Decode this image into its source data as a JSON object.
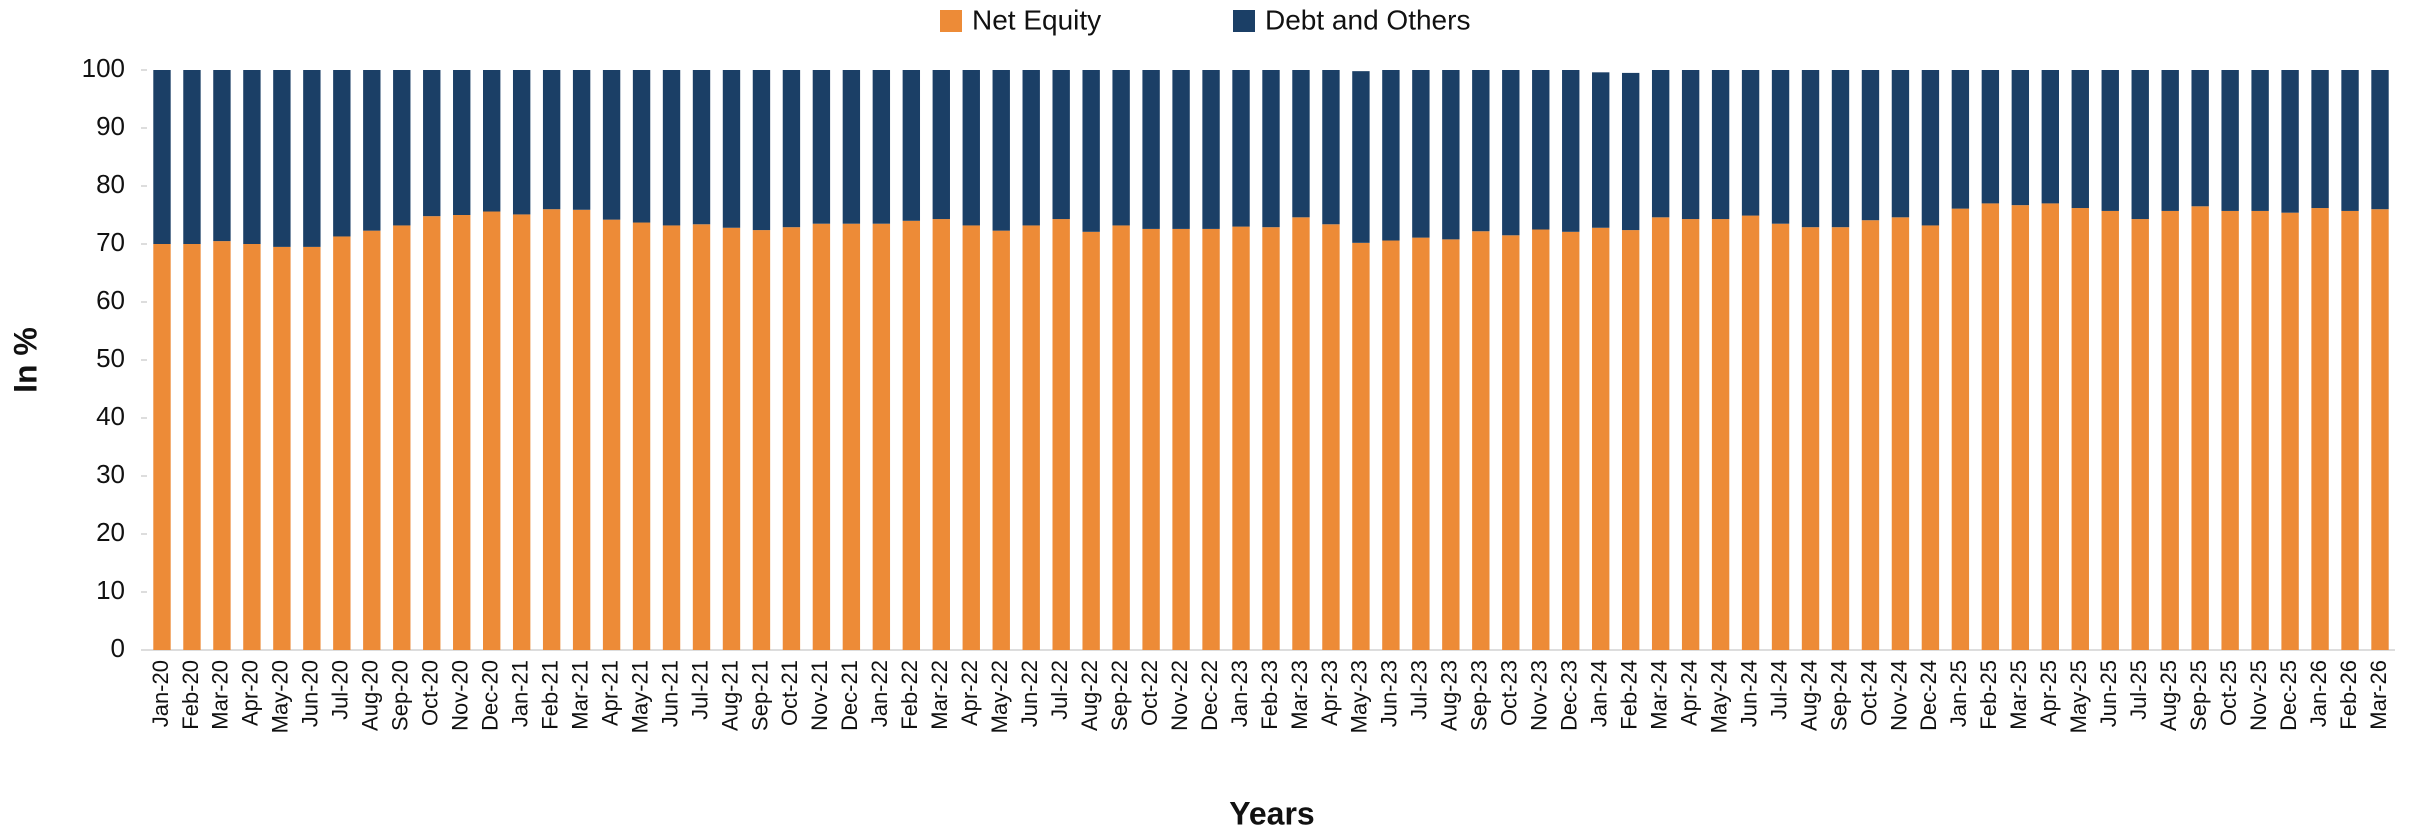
{
  "chart_data": {
    "type": "stacked_bar",
    "x_label": "Years",
    "y_label": "In %",
    "categories": [
      "Jan-20",
      "Feb-20",
      "Mar-20",
      "Apr-20",
      "May-20",
      "Jun-20",
      "Jul-20",
      "Aug-20",
      "Sep-20",
      "Oct-20",
      "Nov-20",
      "Dec-20",
      "Jan-21",
      "Feb-21",
      "Mar-21",
      "Apr-21",
      "May-21",
      "Jun-21",
      "Jul-21",
      "Aug-21",
      "Sep-21",
      "Oct-21",
      "Nov-21",
      "Dec-21",
      "Jan-22",
      "Feb-22",
      "Mar-22",
      "Apr-22",
      "May-22",
      "Jun-22",
      "Jul-22",
      "Aug-22",
      "Sep-22",
      "Oct-22",
      "Nov-22",
      "Dec-22",
      "Jan-23",
      "Feb-23",
      "Mar-23",
      "Apr-23",
      "May-23",
      "Jun-23",
      "Jul-23",
      "Aug-23",
      "Sep-23",
      "Oct-23",
      "Nov-23",
      "Dec-23",
      "Jan-24",
      "Feb-24",
      "Mar-24",
      "Apr-24",
      "May-24",
      "Jun-24",
      "Jul-24",
      "Aug-24",
      "Sep-24",
      "Oct-24",
      "Nov-24",
      "Dec-24",
      "Jan-25",
      "Feb-25",
      "Mar-25",
      "Apr-25",
      "May-25",
      "Jun-25",
      "Jul-25",
      "Aug-25",
      "Sep-25",
      "Oct-25",
      "Nov-25",
      "Dec-25",
      "Jan-26",
      "Feb-26",
      "Mar-26"
    ],
    "series": [
      {
        "name": "Net Equity",
        "color": "#ed8b37",
        "values": [
          70,
          70,
          70.5,
          70,
          69.5,
          69.5,
          71.3,
          72.3,
          73.2,
          74.8,
          75,
          75.6,
          75.1,
          76,
          75.9,
          74.2,
          73.7,
          73.2,
          73.4,
          72.8,
          72.4,
          72.9,
          73.5,
          73.5,
          73.5,
          74,
          74.3,
          73.2,
          72.3,
          73.2,
          74.3,
          72.1,
          73.2,
          72.6,
          72.6,
          72.6,
          73,
          72.9,
          74.6,
          73.4,
          70.2,
          70.6,
          71.1,
          70.8,
          72.2,
          71.5,
          72.5,
          72.1,
          72.8,
          72.4,
          74.6,
          74.3,
          74.3,
          74.9,
          73.5,
          72.9,
          72.9,
          74.1,
          74.6,
          73.2,
          76.1,
          77,
          76.7,
          77,
          76.2,
          75.7,
          74.3,
          75.7,
          76.5,
          75.7,
          75.7,
          75.4,
          76.2,
          75.7,
          76
        ]
      },
      {
        "name": "Debt and Others",
        "color": "#1b3f66",
        "values": [
          30,
          30,
          29.5,
          30,
          30.5,
          30.5,
          28.7,
          27.7,
          26.8,
          25.2,
          25,
          24.4,
          24.9,
          24,
          24.1,
          25.8,
          26.3,
          26.8,
          26.6,
          27.2,
          27.6,
          27.1,
          26.5,
          26.5,
          26.5,
          26,
          25.7,
          26.8,
          27.7,
          26.8,
          25.7,
          27.9,
          26.8,
          27.4,
          27.4,
          27.4,
          27,
          27.1,
          25.4,
          26.6,
          29.6,
          29.4,
          28.9,
          29.2,
          27.8,
          28.5,
          27.5,
          27.9,
          26.8,
          27.1,
          25.4,
          25.7,
          25.7,
          25.1,
          26.5,
          27.1,
          27.1,
          25.9,
          25.4,
          26.8,
          23.9,
          23,
          23.3,
          23,
          23.8,
          24.3,
          25.7,
          24.3,
          23.5,
          24.3,
          24.3,
          24.6,
          23.8,
          24.3,
          24
        ]
      }
    ],
    "ylim": [
      0,
      100
    ],
    "yticks": [
      0,
      10,
      20,
      30,
      40,
      50,
      60,
      70,
      80,
      90,
      100
    ],
    "grid": false,
    "legend": "top"
  }
}
